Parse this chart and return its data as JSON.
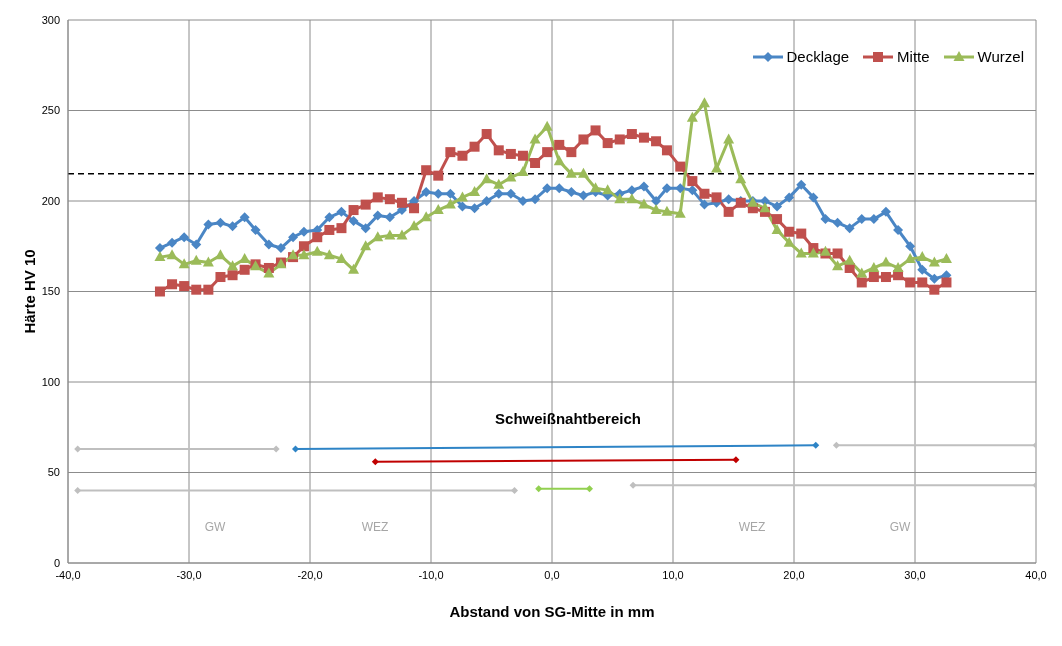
{
  "chart_data": {
    "type": "line",
    "xlabel": "Abstand von SG-Mitte in mm",
    "ylabel": "Härte HV 10",
    "x": [
      -32.4,
      -31.4,
      -30.4,
      -29.4,
      -28.4,
      -27.4,
      -26.4,
      -25.4,
      -24.5,
      -23.4,
      -22.4,
      -21.4,
      -20.5,
      -19.4,
      -18.4,
      -17.4,
      -16.4,
      -15.4,
      -14.4,
      -13.4,
      -12.4,
      -11.4,
      -10.4,
      -9.4,
      -8.4,
      -7.4,
      -6.4,
      -5.4,
      -4.4,
      -3.4,
      -2.4,
      -1.4,
      -0.4,
      0.6,
      1.6,
      2.6,
      3.6,
      4.6,
      5.6,
      6.6,
      7.6,
      8.6,
      9.5,
      10.6,
      11.6,
      12.6,
      13.6,
      14.6,
      15.6,
      16.6,
      17.6,
      18.6,
      19.6,
      20.6,
      21.6,
      22.6,
      23.6,
      24.6,
      25.6,
      26.6,
      27.6,
      28.6,
      29.6,
      30.6,
      31.6,
      32.6
    ],
    "series": [
      {
        "name": "Decklage",
        "color": "#4a86c5",
        "marker": "diamond",
        "values": [
          174,
          177,
          180,
          176,
          187,
          188,
          186,
          191,
          184,
          176,
          174,
          180,
          183,
          184,
          191,
          194,
          189,
          185,
          192,
          191,
          195,
          200,
          205,
          204,
          204,
          197,
          196,
          200,
          204,
          204,
          200,
          201,
          207,
          207,
          205,
          203,
          205,
          203,
          204,
          206,
          208,
          200,
          207,
          207,
          206,
          198,
          199,
          201,
          200,
          200,
          200,
          197,
          202,
          209,
          202,
          190,
          188,
          185,
          190,
          190,
          194,
          184,
          175,
          162,
          157,
          159
        ]
      },
      {
        "name": "Mitte",
        "color": "#c0504d",
        "marker": "square",
        "values": [
          150,
          154,
          153,
          151,
          151,
          158,
          159,
          162,
          165,
          163,
          166,
          169,
          175,
          180,
          184,
          185,
          195,
          198,
          202,
          201,
          199,
          196,
          217,
          214,
          227,
          225,
          230,
          237,
          228,
          226,
          225,
          221,
          227,
          231,
          227,
          234,
          239,
          232,
          234,
          237,
          235,
          233,
          228,
          219,
          211,
          204,
          202,
          194,
          199,
          196,
          194,
          190,
          183,
          182,
          174,
          171,
          171,
          163,
          155,
          158,
          158,
          159,
          155,
          155,
          151,
          155
        ]
      },
      {
        "name": "Wurzel",
        "color": "#9bbb59",
        "marker": "triangle",
        "values": [
          169,
          170,
          165,
          167,
          166,
          170,
          164,
          168,
          164,
          160,
          165,
          170,
          170,
          172,
          170,
          168,
          162,
          175,
          180,
          181,
          181,
          186,
          191,
          195,
          198,
          202,
          205,
          212,
          209,
          213,
          216,
          234,
          241,
          222,
          215,
          215,
          207,
          206,
          201,
          201,
          198,
          195,
          194,
          193,
          246,
          254,
          218,
          234,
          212,
          199,
          196,
          184,
          177,
          171,
          171,
          172,
          164,
          167,
          160,
          163,
          166,
          163,
          168,
          169,
          166,
          168
        ]
      },
      {
        "color": "#bfbfbf",
        "marker": "diamond",
        "x": [
          -39.2,
          -22.8
        ],
        "values": [
          63,
          63
        ]
      },
      {
        "color": "#2e84c6",
        "marker": "diamond",
        "x": [
          -21.2,
          21.8
        ],
        "values": [
          63,
          65
        ]
      },
      {
        "color": "#c00000",
        "marker": "diamond",
        "x": [
          -14.6,
          15.2
        ],
        "values": [
          56,
          57
        ]
      },
      {
        "color": "#bfbfbf",
        "marker": "diamond",
        "x": [
          23.5,
          40
        ],
        "values": [
          65,
          65
        ]
      },
      {
        "color": "#bfbfbf",
        "marker": "diamond",
        "x": [
          -39.2,
          -3.1
        ],
        "values": [
          40,
          40
        ]
      },
      {
        "color": "#92d050",
        "marker": "diamond",
        "x": [
          -1.1,
          3.1
        ],
        "values": [
          41,
          41
        ]
      },
      {
        "color": "#bfbfbf",
        "marker": "diamond",
        "x": [
          6.7,
          40
        ],
        "values": [
          43,
          43
        ]
      }
    ],
    "ref_lines": [
      {
        "axis": "y",
        "value": 215,
        "color": "#000000",
        "line_style": "dashed"
      }
    ],
    "annotations": [
      "Schweißnahtbereich",
      "GW",
      "WEZ",
      "WEZ",
      "GW"
    ],
    "xlim": [
      -40,
      40
    ],
    "xticks": [
      {
        "value": -40,
        "label": "-40,0"
      },
      {
        "value": -30,
        "label": "-30,0"
      },
      {
        "value": -20,
        "label": "-20,0"
      },
      {
        "value": -10,
        "label": "-10,0"
      },
      {
        "value": 0,
        "label": "0,0"
      },
      {
        "value": 10,
        "label": "10,0"
      },
      {
        "value": 20,
        "label": "20,0"
      },
      {
        "value": 30,
        "label": "30,0"
      },
      {
        "value": 40,
        "label": "40,0"
      }
    ],
    "ylim": [
      0,
      300
    ],
    "yticks": [
      0,
      50,
      100,
      150,
      200,
      250,
      300
    ],
    "grid": true,
    "legend": "top right",
    "line_style": "solid"
  }
}
